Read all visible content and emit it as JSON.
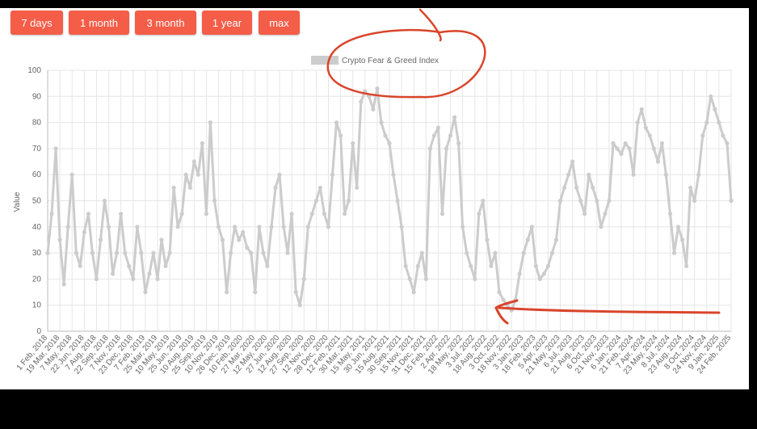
{
  "range_buttons": [
    "7 days",
    "1 month",
    "3 month",
    "1 year",
    "max"
  ],
  "colors": {
    "button": "#f45d48",
    "series": "#cccccc",
    "grid": "#e6e6e6",
    "annotation": "#d9452b",
    "background_outer": "#000000"
  },
  "chart_data": {
    "type": "line",
    "title": "",
    "legend": {
      "label": "Crypto Fear & Greed Index",
      "position": "top"
    },
    "ylabel": "Value",
    "xlabel": "",
    "ylim": [
      0,
      100
    ],
    "yticks": [
      0,
      10,
      20,
      30,
      40,
      50,
      60,
      70,
      80,
      90,
      100
    ],
    "grid": true,
    "xtick_labels": [
      "1 Feb, 2018",
      "19 Mar, 2018",
      "7 May, 2018",
      "22 Jun, 2018",
      "7 Aug, 2018",
      "22 Sep, 2018",
      "7 Nov, 2018",
      "23 Dec, 2018",
      "7 Feb, 2019",
      "25 Mar, 2019",
      "10 May, 2019",
      "25 Jun, 2019",
      "10 Aug, 2019",
      "25 Sep, 2019",
      "10 Nov, 2019",
      "26 Dec, 2019",
      "10 Feb, 2020",
      "27 Mar, 2020",
      "12 May, 2020",
      "27 Jun, 2020",
      "12 Aug, 2020",
      "27 Sep, 2020",
      "12 Nov, 2020",
      "28 Dec, 2020",
      "12 Feb, 2021",
      "30 Mar, 2021",
      "15 May, 2021",
      "30 Jun, 2021",
      "15 Aug, 2021",
      "30 Sep, 2021",
      "15 Nov, 2021",
      "31 Dec, 2021",
      "15 Feb, 2022",
      "2 Apr, 2022",
      "18 May, 2022",
      "3 Jul, 2022",
      "18 Aug, 2022",
      "3 Oct, 2022",
      "18 Nov, 2022",
      "3 Jan, 2023",
      "18 Feb, 2023",
      "5 Apr, 2023",
      "21 May, 2023",
      "6 Jul, 2023",
      "21 Aug, 2023",
      "6 Oct, 2023",
      "21 Nov, 2023",
      "6 Jan, 2024",
      "21 Feb, 2024",
      "7 Apr, 2024",
      "23 May, 2024",
      "8 Jul, 2024",
      "23 Aug, 2024",
      "8 Oct, 2024",
      "24 Nov, 2024",
      "9 Jan, 2025",
      "24 Feb, 2025"
    ],
    "series": [
      {
        "name": "Crypto Fear & Greed Index",
        "x_start": "2018-02-01",
        "x_step_days": 15,
        "values": [
          30,
          45,
          70,
          35,
          18,
          40,
          60,
          30,
          25,
          38,
          45,
          30,
          20,
          35,
          50,
          40,
          22,
          30,
          45,
          30,
          25,
          20,
          40,
          30,
          15,
          22,
          30,
          20,
          35,
          25,
          30,
          55,
          40,
          45,
          60,
          55,
          65,
          60,
          72,
          45,
          80,
          50,
          40,
          35,
          15,
          30,
          40,
          35,
          38,
          32,
          30,
          15,
          40,
          30,
          25,
          40,
          55,
          60,
          40,
          30,
          45,
          15,
          10,
          20,
          40,
          45,
          50,
          55,
          45,
          40,
          60,
          80,
          75,
          45,
          50,
          72,
          55,
          88,
          92,
          90,
          85,
          93,
          80,
          75,
          72,
          60,
          50,
          40,
          25,
          20,
          15,
          25,
          30,
          20,
          70,
          75,
          78,
          45,
          70,
          75,
          82,
          72,
          40,
          30,
          25,
          20,
          45,
          50,
          35,
          25,
          30,
          15,
          12,
          10,
          8,
          12,
          22,
          30,
          35,
          40,
          25,
          20,
          22,
          25,
          30,
          35,
          50,
          55,
          60,
          65,
          55,
          50,
          45,
          60,
          55,
          50,
          40,
          45,
          50,
          72,
          70,
          68,
          72,
          70,
          60,
          80,
          85,
          78,
          75,
          70,
          65,
          72,
          60,
          45,
          30,
          40,
          35,
          25,
          55,
          50,
          60,
          75,
          80,
          90,
          85,
          80,
          75,
          72,
          50
        ]
      }
    ]
  }
}
